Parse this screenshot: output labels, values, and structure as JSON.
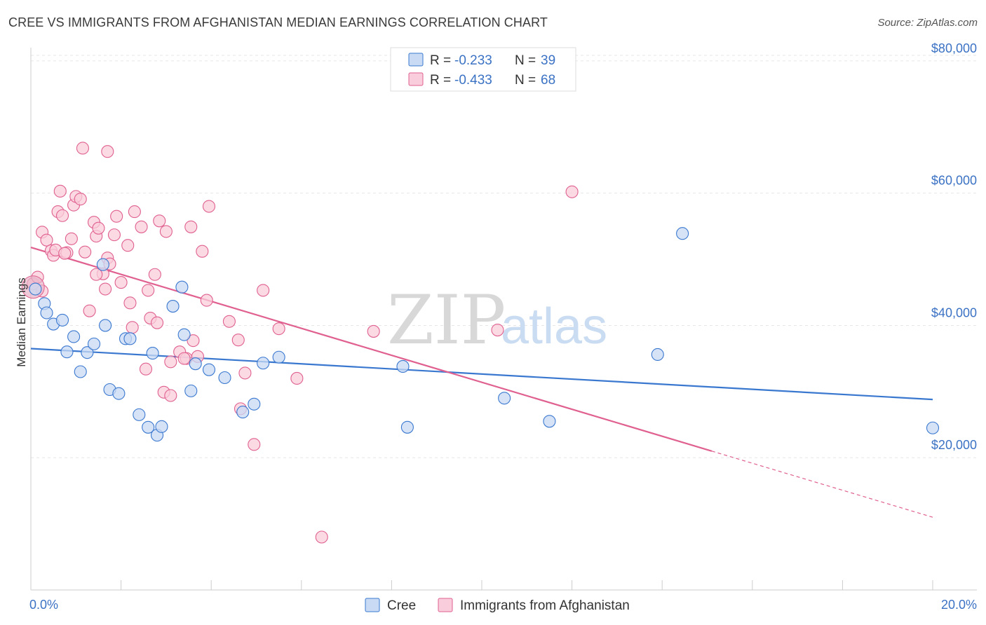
{
  "title": "CREE VS IMMIGRANTS FROM AFGHANISTAN MEDIAN EARNINGS CORRELATION CHART",
  "source": "Source: ZipAtlas.com",
  "watermark": {
    "zip": "ZIP",
    "atlas": "atlas"
  },
  "colors": {
    "cree": "#3a78d0",
    "afghan": "#e0608f",
    "cree_fill": "#c8daf4",
    "afghan_fill": "#f9cddb",
    "tick": "#3b72c4"
  },
  "legend": {
    "r_label": "R =",
    "n_label": "N =",
    "rows": [
      {
        "r": "-0.233",
        "n": "39"
      },
      {
        "r": "-0.433",
        "n": "68"
      }
    ]
  },
  "chart_data": {
    "type": "scatter",
    "title": "CREE VS IMMIGRANTS FROM AFGHANISTAN MEDIAN EARNINGS CORRELATION CHART",
    "xlabel": "",
    "ylabel": "Median Earnings",
    "xlim": [
      0,
      20
    ],
    "ylim": [
      0,
      82000
    ],
    "x_tick_labels": [
      "0.0%",
      "20.0%"
    ],
    "y_ticks": [
      20000,
      40000,
      60000,
      80000
    ],
    "y_tick_labels": [
      "$20,000",
      "$40,000",
      "$60,000",
      "$80,000"
    ],
    "grid": true,
    "legend_position": "top-center",
    "series": [
      {
        "name": "Cree",
        "r": -0.233,
        "n": 39,
        "trend": {
          "x": [
            0,
            20
          ],
          "y": [
            36500,
            28800
          ]
        },
        "points": [
          [
            0.1,
            45500
          ],
          [
            0.3,
            43300
          ],
          [
            0.35,
            41900
          ],
          [
            0.5,
            40200
          ],
          [
            0.7,
            40800
          ],
          [
            0.8,
            36000
          ],
          [
            0.95,
            38300
          ],
          [
            1.1,
            33000
          ],
          [
            1.25,
            35900
          ],
          [
            1.4,
            37200
          ],
          [
            1.6,
            49200
          ],
          [
            1.65,
            40000
          ],
          [
            1.75,
            30300
          ],
          [
            1.95,
            29700
          ],
          [
            2.1,
            38000
          ],
          [
            2.2,
            38000
          ],
          [
            2.4,
            26500
          ],
          [
            2.6,
            24600
          ],
          [
            2.7,
            35800
          ],
          [
            2.8,
            23400
          ],
          [
            2.9,
            24700
          ],
          [
            3.15,
            42900
          ],
          [
            3.35,
            45800
          ],
          [
            3.4,
            38600
          ],
          [
            3.55,
            30100
          ],
          [
            3.65,
            34200
          ],
          [
            3.95,
            33300
          ],
          [
            4.3,
            32100
          ],
          [
            4.7,
            26900
          ],
          [
            4.95,
            28100
          ],
          [
            5.15,
            34300
          ],
          [
            5.5,
            35200
          ],
          [
            8.25,
            33800
          ],
          [
            8.35,
            24600
          ],
          [
            10.5,
            29000
          ],
          [
            11.5,
            25500
          ],
          [
            13.9,
            35600
          ],
          [
            14.45,
            53900
          ],
          [
            20.0,
            24500
          ]
        ]
      },
      {
        "name": "Immigrants from Afghanistan",
        "r": -0.433,
        "n": 68,
        "trend": {
          "x": [
            0,
            15.1
          ],
          "y": [
            51800,
            21000
          ]
        },
        "trend_dashed": {
          "x": [
            15.1,
            20
          ],
          "y": [
            21000,
            11000
          ]
        },
        "points": [
          [
            0.05,
            46300
          ],
          [
            0.15,
            47300
          ],
          [
            0.25,
            45200
          ],
          [
            0.25,
            54100
          ],
          [
            0.35,
            52900
          ],
          [
            0.45,
            51300
          ],
          [
            0.5,
            50600
          ],
          [
            0.55,
            51400
          ],
          [
            0.6,
            57200
          ],
          [
            0.65,
            60300
          ],
          [
            0.7,
            56600
          ],
          [
            0.8,
            51000
          ],
          [
            0.9,
            53100
          ],
          [
            0.95,
            58200
          ],
          [
            1.0,
            59500
          ],
          [
            1.1,
            59100
          ],
          [
            1.15,
            66800
          ],
          [
            1.2,
            51100
          ],
          [
            1.3,
            42200
          ],
          [
            1.4,
            55600
          ],
          [
            1.45,
            53500
          ],
          [
            1.5,
            54700
          ],
          [
            1.6,
            47800
          ],
          [
            1.65,
            45500
          ],
          [
            1.7,
            50200
          ],
          [
            1.75,
            49300
          ],
          [
            1.7,
            66300
          ],
          [
            1.85,
            53700
          ],
          [
            1.9,
            56500
          ],
          [
            2.0,
            46500
          ],
          [
            2.15,
            52100
          ],
          [
            2.2,
            43400
          ],
          [
            2.25,
            39700
          ],
          [
            2.3,
            57200
          ],
          [
            2.45,
            54900
          ],
          [
            2.55,
            33400
          ],
          [
            2.6,
            45300
          ],
          [
            2.65,
            41100
          ],
          [
            2.75,
            47700
          ],
          [
            2.8,
            40400
          ],
          [
            2.85,
            55800
          ],
          [
            2.95,
            29900
          ],
          [
            3.0,
            54200
          ],
          [
            3.1,
            29400
          ],
          [
            3.1,
            34500
          ],
          [
            3.3,
            36000
          ],
          [
            3.45,
            35000
          ],
          [
            3.55,
            54900
          ],
          [
            3.6,
            37700
          ],
          [
            3.7,
            35300
          ],
          [
            3.8,
            51200
          ],
          [
            3.9,
            43800
          ],
          [
            3.95,
            58000
          ],
          [
            4.4,
            40600
          ],
          [
            4.6,
            37800
          ],
          [
            4.65,
            27400
          ],
          [
            4.75,
            32800
          ],
          [
            4.95,
            22000
          ],
          [
            5.15,
            45300
          ],
          [
            5.5,
            39500
          ],
          [
            5.9,
            32000
          ],
          [
            6.45,
            8000
          ],
          [
            7.6,
            39100
          ],
          [
            10.35,
            39300
          ],
          [
            12.0,
            60200
          ],
          [
            1.45,
            47700
          ],
          [
            0.75,
            50900
          ],
          [
            3.4,
            35000
          ]
        ]
      }
    ]
  },
  "bottom_legend": [
    "Cree",
    "Immigrants from Afghanistan"
  ]
}
